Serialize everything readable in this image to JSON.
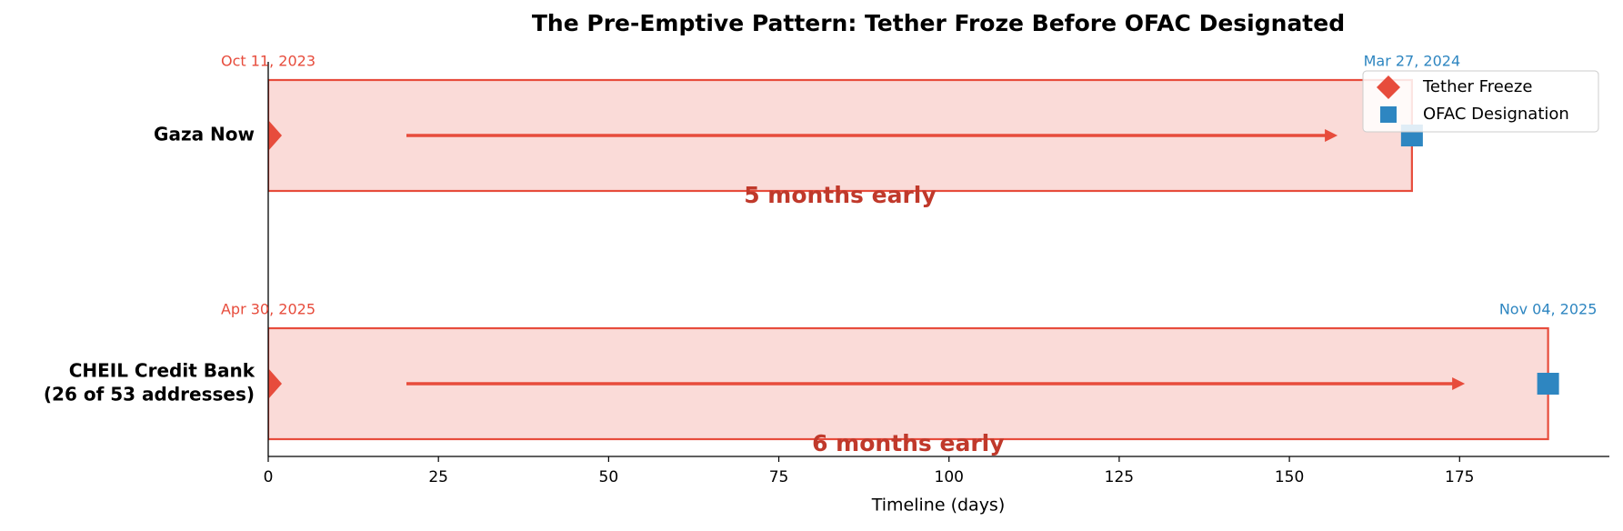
{
  "chart_data": {
    "type": "timeline",
    "title": "The Pre-Emptive Pattern: Tether Froze Before OFAC Designated",
    "xlabel": "Timeline (days)",
    "categories": [
      [
        "Gaza Now"
      ],
      [
        "CHEIL Credit Bank",
        "(26 of 53 addresses)"
      ]
    ],
    "series": [
      {
        "name": "Tether Freeze",
        "color": "#e74c3c",
        "marker": "diamond",
        "values": [
          0,
          0
        ],
        "value_labels": [
          "Oct 11, 2023",
          "Apr 30, 2025"
        ]
      },
      {
        "name": "OFAC Designation",
        "color": "#2e86c1",
        "marker": "square",
        "values": [
          168,
          188
        ],
        "value_labels": [
          "Mar 27, 2024",
          "Nov 04, 2025"
        ]
      }
    ],
    "annotations": [
      "5 months early",
      "6 months early"
    ],
    "bar_color": "#fadbd8",
    "annotation_color": "#c0392b",
    "xlim": [
      0,
      197
    ],
    "xticks": [
      0,
      25,
      50,
      75,
      100,
      125,
      150,
      175
    ],
    "legend": "upper right"
  }
}
